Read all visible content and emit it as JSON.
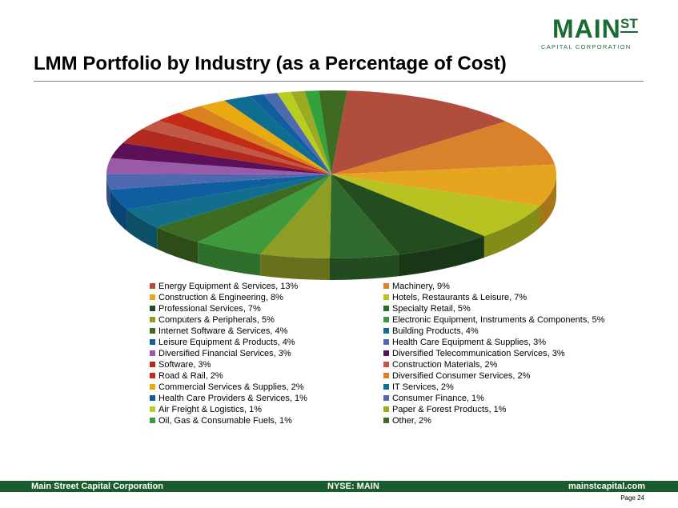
{
  "logo": {
    "main": "MAIN",
    "st": "ST",
    "sub": "CAPITAL CORPORATION"
  },
  "title": "LMM Portfolio by Industry (as a Percentage of Cost)",
  "footer": {
    "left": "Main Street Capital Corporation",
    "center": "NYSE: MAIN",
    "right": "mainstcapital.com",
    "page": "Page  24"
  },
  "chart_data": {
    "type": "pie",
    "title": "",
    "start_angle_deg": 86,
    "legend_position": "bottom",
    "slices": [
      {
        "label": "Energy Equipment & Services, 13%",
        "value": 13,
        "color": "#b14d3d"
      },
      {
        "label": "Machinery, 9%",
        "value": 9,
        "color": "#d9822b"
      },
      {
        "label": "Construction & Engineering, 8%",
        "value": 8,
        "color": "#e5a51f"
      },
      {
        "label": "Hotels, Restaurants & Leisure, 7%",
        "value": 7,
        "color": "#b8c322"
      },
      {
        "label": "Professional Services, 7%",
        "value": 7,
        "color": "#234c1f"
      },
      {
        "label": "Specialty Retail, 5%",
        "value": 5,
        "color": "#2f6a2c"
      },
      {
        "label": "Computers & Peripherals, 5%",
        "value": 5,
        "color": "#8f9d25"
      },
      {
        "label": "Electronic Equipment, Instruments & Components, 5%",
        "value": 5,
        "color": "#3f9a3c"
      },
      {
        "label": "Internet Software & Services, 4%",
        "value": 4,
        "color": "#3e6b22"
      },
      {
        "label": "Building Products, 4%",
        "value": 4,
        "color": "#126e8c"
      },
      {
        "label": "Leisure Equipment & Products, 4%",
        "value": 4,
        "color": "#0e5ea0"
      },
      {
        "label": "Health Care Equipment & Supplies, 3%",
        "value": 3,
        "color": "#4f69b0"
      },
      {
        "label": "Diversified Financial Services, 3%",
        "value": 3,
        "color": "#9a5aa8"
      },
      {
        "label": "Diversified Telecommunication Services, 3%",
        "value": 3,
        "color": "#5b1058"
      },
      {
        "label": "Software, 3%",
        "value": 3,
        "color": "#b02a1e"
      },
      {
        "label": "Construction Materials, 2%",
        "value": 2,
        "color": "#c15845"
      },
      {
        "label": "Road & Rail, 2%",
        "value": 2,
        "color": "#c42a18"
      },
      {
        "label": "Diversified Consumer Services, 2%",
        "value": 2,
        "color": "#d9821f"
      },
      {
        "label": "Commercial Services & Supplies, 2%",
        "value": 2,
        "color": "#e8aa10"
      },
      {
        "label": "IT Services, 2%",
        "value": 2,
        "color": "#0f6e8f"
      },
      {
        "label": "Health Care Providers & Services, 1%",
        "value": 1,
        "color": "#0f5ea0"
      },
      {
        "label": "Consumer Finance, 1%",
        "value": 1,
        "color": "#4e69b0"
      },
      {
        "label": "Air Freight & Logistics, 1%",
        "value": 1,
        "color": "#b9cc20"
      },
      {
        "label": "Paper & Forest Products, 1%",
        "value": 1,
        "color": "#9aab22"
      },
      {
        "label": "Oil, Gas & Consumable Fuels, 1%",
        "value": 1,
        "color": "#34a23a"
      },
      {
        "label": "Other, 2%",
        "value": 2,
        "color": "#3e6b22"
      }
    ]
  }
}
